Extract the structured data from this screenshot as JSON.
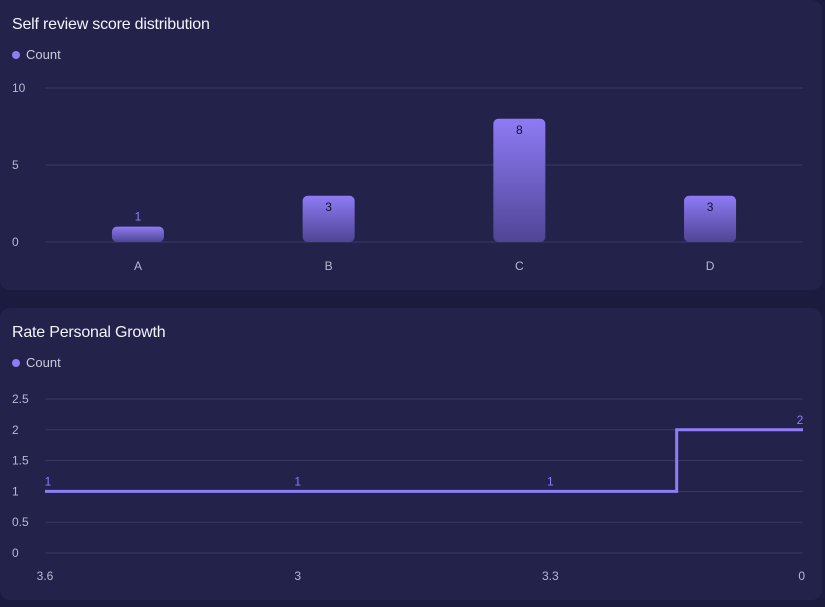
{
  "colors": {
    "accent": "#8f7cf7",
    "bar_top": "#8e7bf4",
    "bar_bottom": "#4f4595",
    "grid": "#3a3966"
  },
  "chart_data": [
    {
      "type": "bar",
      "title": "Self review score distribution",
      "legend": [
        "Count"
      ],
      "categories": [
        "A",
        "B",
        "C",
        "D"
      ],
      "series": [
        {
          "name": "Count",
          "values": [
            1,
            3,
            8,
            3
          ]
        }
      ],
      "data_labels": [
        "1",
        "3",
        "8",
        "3"
      ],
      "yticks": [
        "0",
        "5",
        "10"
      ],
      "ylim": [
        0,
        10
      ],
      "grid": true
    },
    {
      "type": "line",
      "step": true,
      "title": "Rate Personal Growth",
      "legend": [
        "Count"
      ],
      "categories": [
        "3.6",
        "3",
        "3.3",
        "0"
      ],
      "series": [
        {
          "name": "Count",
          "values": [
            1,
            1,
            1,
            2
          ]
        }
      ],
      "data_labels": [
        "1",
        "1",
        "1",
        "2"
      ],
      "yticks": [
        "0",
        "0.5",
        "1",
        "1.5",
        "2",
        "2.5"
      ],
      "ylim": [
        0,
        2.5
      ],
      "grid": true
    }
  ]
}
